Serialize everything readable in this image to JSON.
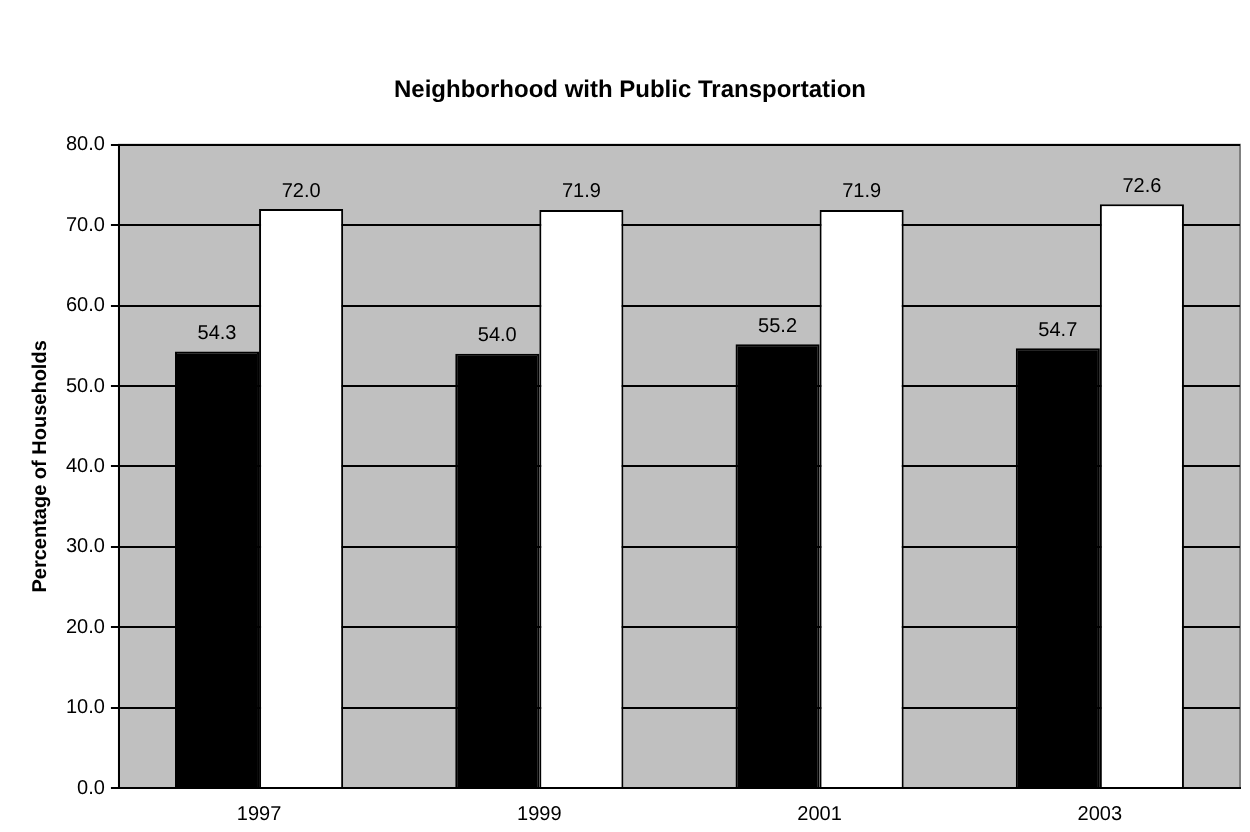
{
  "chart_data": {
    "type": "bar",
    "title": "Neighborhood with Public Transportation",
    "ylabel": "Percentage of Households",
    "categories": [
      "1997",
      "1999",
      "2001",
      "2003"
    ],
    "series": [
      {
        "color": "#000000",
        "values": [
          54.3,
          54.0,
          55.2,
          54.7
        ],
        "value_labels": [
          "54.3",
          "54.0",
          "55.2",
          "54.7"
        ]
      },
      {
        "color": "#ffffff",
        "values": [
          72.0,
          71.9,
          71.9,
          72.6
        ],
        "value_labels": [
          "72.0",
          "71.9",
          "71.9",
          "72.6"
        ]
      }
    ],
    "ylim": [
      0,
      80
    ],
    "yticks": [
      {
        "value": 0,
        "label": "0.0"
      },
      {
        "value": 10,
        "label": "10.0"
      },
      {
        "value": 20,
        "label": "20.0"
      },
      {
        "value": 30,
        "label": "30.0"
      },
      {
        "value": 40,
        "label": "40.0"
      },
      {
        "value": 50,
        "label": "50.0"
      },
      {
        "value": 60,
        "label": "60.0"
      },
      {
        "value": 70,
        "label": "70.0"
      },
      {
        "value": 80,
        "label": "80.0"
      }
    ],
    "grid": "y",
    "legend": false
  }
}
